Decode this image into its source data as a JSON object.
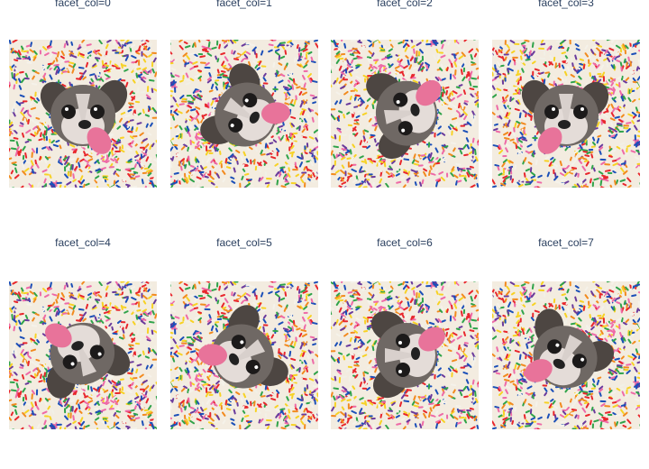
{
  "facets": [
    {
      "label": "facet_col=0"
    },
    {
      "label": "facet_col=1"
    },
    {
      "label": "facet_col=2"
    },
    {
      "label": "facet_col=3"
    },
    {
      "label": "facet_col=4"
    },
    {
      "label": "facet_col=5"
    },
    {
      "label": "facet_col=6"
    },
    {
      "label": "facet_col=7"
    }
  ]
}
